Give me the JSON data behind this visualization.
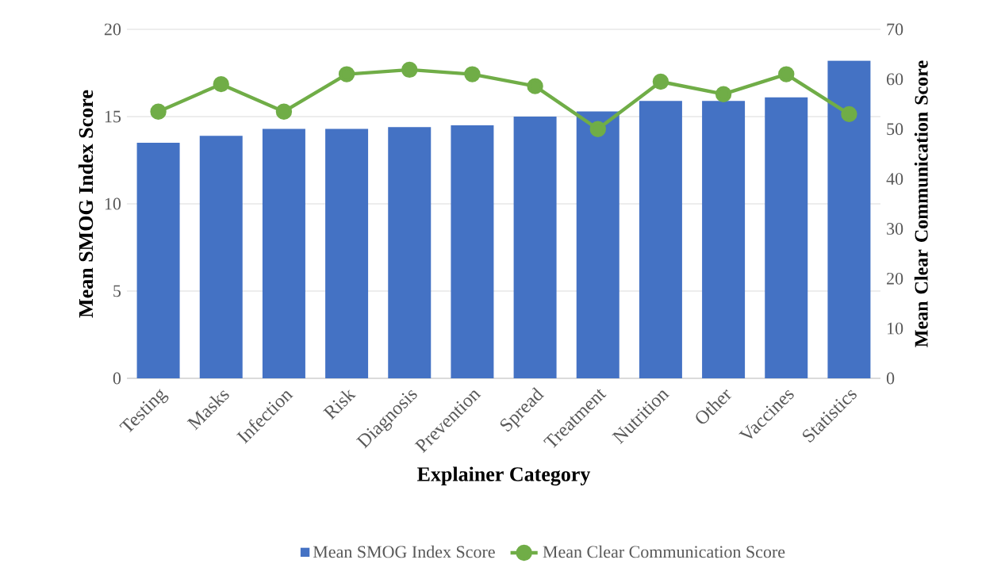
{
  "chart_data": {
    "type": "bar",
    "xlabel": "Explainer Category",
    "ylabel": "Mean SMOG Index Score",
    "y2label": "Mean Clear Communication Score",
    "categories": [
      "Testing",
      "Masks",
      "Infection",
      "Risk",
      "Diagnosis",
      "Prevention",
      "Spread",
      "Treatment",
      "Nutrition",
      "Other",
      "Vaccines",
      "Statistics"
    ],
    "series": [
      {
        "name": "Mean SMOG Index Score",
        "color": "#4472c4",
        "values": [
          13.5,
          13.9,
          14.3,
          14.3,
          14.4,
          14.5,
          15.0,
          15.3,
          15.9,
          15.9,
          16.1,
          18.2
        ]
      },
      {
        "name": "Mean Clear Communication Score",
        "type": "line",
        "axis": "y2",
        "color": "#70ad47",
        "marker": "circle",
        "values": [
          53.5,
          59.0,
          53.5,
          61.0,
          61.9,
          61.0,
          58.6,
          50.0,
          59.5,
          57.0,
          61.0,
          53.0
        ]
      }
    ],
    "ylim": [
      0,
      20
    ],
    "yticks": [
      0,
      5,
      10,
      15,
      20
    ],
    "y2lim": [
      0,
      70
    ],
    "y2ticks": [
      0,
      10,
      20,
      30,
      40,
      50,
      60,
      70
    ],
    "grid": "y",
    "legend": "bottom"
  }
}
